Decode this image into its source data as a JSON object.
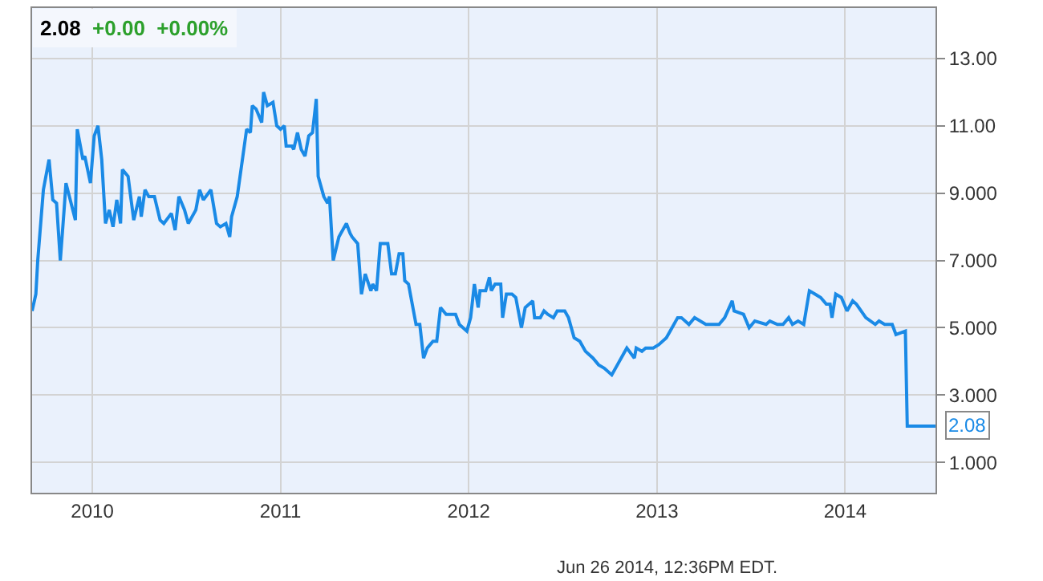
{
  "chart_data": {
    "type": "line",
    "title": "2.08",
    "subtitle": "+0.00  +0.00%",
    "x": [
      2009.68,
      2009.7,
      2009.71,
      2009.74,
      2009.75,
      2009.77,
      2009.79,
      2009.81,
      2009.83,
      2009.85,
      2009.86,
      2009.91,
      2009.92,
      2009.95,
      2009.96,
      2009.99,
      2010.01,
      2010.03,
      2010.05,
      2010.07,
      2010.09,
      2010.11,
      2010.13,
      2010.15,
      2010.16,
      2010.19,
      2010.22,
      2010.25,
      2010.26,
      2010.28,
      2010.3,
      2010.33,
      2010.36,
      2010.38,
      2010.42,
      2010.44,
      2010.46,
      2010.49,
      2010.51,
      2010.55,
      2010.57,
      2010.59,
      2010.63,
      2010.66,
      2010.68,
      2010.71,
      2010.73,
      2010.74,
      2010.77,
      2010.8,
      2010.82,
      2010.84,
      2010.85,
      2010.87,
      2010.9,
      2010.91,
      2010.93,
      2010.96,
      2010.98,
      2011.0,
      2011.02,
      2011.03,
      2011.06,
      2011.07,
      2011.09,
      2011.11,
      2011.13,
      2011.15,
      2011.17,
      2011.19,
      2011.2,
      2011.23,
      2011.25,
      2011.26,
      2011.28,
      2011.31,
      2011.32,
      2011.35,
      2011.37,
      2011.38,
      2011.41,
      2011.43,
      2011.45,
      2011.48,
      2011.49,
      2011.51,
      2011.53,
      2011.57,
      2011.59,
      2011.61,
      2011.63,
      2011.65,
      2011.66,
      2011.68,
      2011.72,
      2011.74,
      2011.76,
      2011.78,
      2011.81,
      2011.83,
      2011.85,
      2011.88,
      2011.93,
      2011.95,
      2011.99,
      2012.01,
      2012.03,
      2012.05,
      2012.06,
      2012.09,
      2012.11,
      2012.12,
      2012.14,
      2012.17,
      2012.18,
      2012.2,
      2012.23,
      2012.25,
      2012.28,
      2012.3,
      2012.34,
      2012.35,
      2012.38,
      2012.4,
      2012.42,
      2012.45,
      2012.47,
      2012.51,
      2012.53,
      2012.56,
      2012.59,
      2012.62,
      2012.66,
      2012.69,
      2012.72,
      2012.76,
      2012.79,
      2012.82,
      2012.84,
      2012.88,
      2012.89,
      2012.92,
      2012.94,
      2012.98,
      2013.01,
      2013.05,
      2013.08,
      2013.11,
      2013.13,
      2013.17,
      2013.2,
      2013.26,
      2013.3,
      2013.33,
      2013.36,
      2013.4,
      2013.41,
      2013.46,
      2013.49,
      2013.52,
      2013.58,
      2013.6,
      2013.64,
      2013.67,
      2013.7,
      2013.72,
      2013.75,
      2013.78,
      2013.81,
      2013.84,
      2013.87,
      2013.9,
      2013.92,
      2013.93,
      2013.95,
      2013.98,
      2014.01,
      2014.04,
      2014.06,
      2014.11,
      2014.16,
      2014.18,
      2014.21,
      2014.25,
      2014.27,
      2014.32,
      2014.33,
      2014.48
    ],
    "series": [
      {
        "color": "#1a8ae6",
        "values": [
          5.5,
          6.0,
          7.0,
          9.1,
          9.4,
          10.0,
          8.8,
          8.7,
          7.0,
          8.5,
          9.3,
          8.2,
          10.9,
          10.0,
          10.1,
          9.3,
          10.7,
          11.0,
          10.0,
          8.1,
          8.5,
          8.0,
          8.8,
          8.1,
          9.7,
          9.5,
          8.2,
          8.9,
          8.3,
          9.1,
          8.9,
          8.9,
          8.2,
          8.1,
          8.4,
          7.9,
          8.9,
          8.5,
          8.1,
          8.5,
          9.1,
          8.8,
          9.1,
          8.1,
          8.0,
          8.1,
          7.7,
          8.3,
          8.9,
          10.1,
          10.9,
          10.8,
          11.6,
          11.5,
          11.1,
          12.0,
          11.6,
          11.7,
          11.0,
          10.9,
          11.0,
          10.4,
          10.4,
          10.3,
          10.8,
          10.3,
          10.1,
          10.7,
          10.8,
          11.8,
          9.5,
          8.9,
          8.7,
          8.9,
          7.0,
          7.7,
          7.8,
          8.1,
          7.8,
          7.7,
          7.5,
          6.0,
          6.6,
          6.1,
          6.3,
          6.1,
          7.5,
          7.5,
          6.6,
          6.6,
          7.2,
          7.2,
          6.4,
          6.3,
          5.1,
          5.1,
          4.1,
          4.4,
          4.6,
          4.6,
          5.6,
          5.4,
          5.4,
          5.1,
          4.9,
          5.3,
          6.3,
          5.6,
          6.1,
          6.1,
          6.5,
          6.1,
          6.3,
          6.3,
          5.3,
          6.0,
          6.0,
          5.9,
          5.0,
          5.6,
          5.8,
          5.3,
          5.3,
          5.5,
          5.4,
          5.3,
          5.5,
          5.5,
          5.3,
          4.7,
          4.6,
          4.3,
          4.1,
          3.9,
          3.8,
          3.6,
          3.9,
          4.2,
          4.4,
          4.1,
          4.4,
          4.3,
          4.4,
          4.4,
          4.5,
          4.7,
          5.0,
          5.3,
          5.3,
          5.1,
          5.3,
          5.1,
          5.1,
          5.1,
          5.3,
          5.8,
          5.5,
          5.4,
          5.0,
          5.2,
          5.1,
          5.2,
          5.1,
          5.1,
          5.3,
          5.1,
          5.2,
          5.1,
          6.1,
          6.0,
          5.9,
          5.7,
          5.7,
          5.3,
          6.0,
          5.9,
          5.5,
          5.8,
          5.7,
          5.3,
          5.1,
          5.2,
          5.1,
          5.1,
          4.8,
          4.9,
          2.08,
          2.08
        ]
      }
    ],
    "xlim": [
      2009.68,
      2014.48
    ],
    "ylim": [
      0.1,
      14.5
    ],
    "xticks": [
      {
        "value": 2010,
        "label": "2010"
      },
      {
        "value": 2011,
        "label": "2011"
      },
      {
        "value": 2012,
        "label": "2012"
      },
      {
        "value": 2013,
        "label": "2013"
      },
      {
        "value": 2014,
        "label": "2014"
      }
    ],
    "yticks": [
      {
        "value": 1,
        "label": "1.000"
      },
      {
        "value": 3,
        "label": "3.000"
      },
      {
        "value": 5,
        "label": "5.000"
      },
      {
        "value": 7,
        "label": "7.000"
      },
      {
        "value": 9,
        "label": "9.000"
      },
      {
        "value": 11,
        "label": "11.00"
      },
      {
        "value": 13,
        "label": "13.00"
      }
    ],
    "grid": true,
    "marker": "none",
    "line_style": "solid",
    "annotations": [
      {
        "text": "2.08",
        "x": 2014.48,
        "y": 2.08
      },
      "Jun 26 2014, 12:36PM EDT."
    ]
  }
}
